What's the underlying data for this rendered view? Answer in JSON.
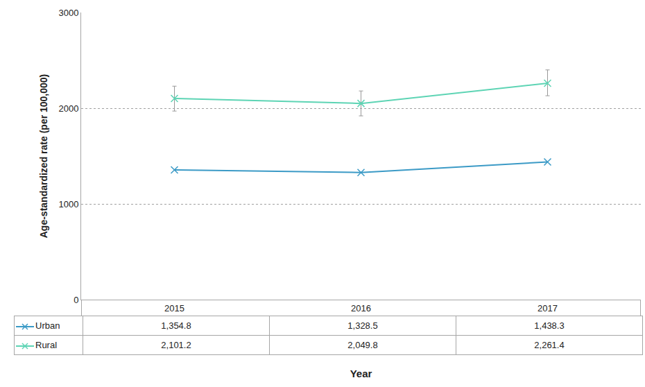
{
  "chart_data": {
    "type": "line",
    "x_label": "Year",
    "y_label": "Age-standardized rate (per 100,000)",
    "categories": [
      "2015",
      "2016",
      "2017"
    ],
    "series": [
      {
        "name": "Urban",
        "color": "#3b9ac6",
        "marker": "x",
        "values": [
          1354.8,
          1328.5,
          1438.3
        ],
        "value_labels": [
          "1,354.8",
          "1,328.5",
          "1,438.3"
        ]
      },
      {
        "name": "Rural",
        "color": "#5dd4b4",
        "marker": "x",
        "values": [
          2101.2,
          2049.8,
          2261.4
        ],
        "value_labels": [
          "2,101.2",
          "2,049.8",
          "2,261.4"
        ],
        "ci_low": [
          1970,
          1920,
          2130
        ],
        "ci_high": [
          2230,
          2180,
          2400
        ]
      }
    ],
    "ylim": [
      0,
      3000
    ],
    "yticks": [
      0,
      1000,
      2000,
      3000
    ],
    "grid": true
  }
}
